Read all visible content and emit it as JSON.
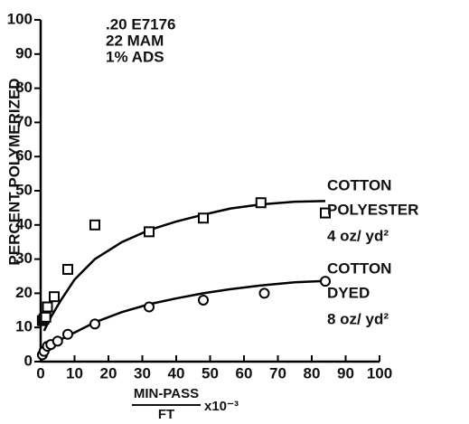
{
  "chart_data": {
    "type": "scatter",
    "annotation": [
      ".20  E7176",
      "22  MAM",
      "1%  ADS"
    ],
    "y_label": "PERCENT  POLYMERIZED",
    "x_label": {
      "numerator": "MIN-PASS",
      "denominator": "FT",
      "multiplier": "x10⁻³"
    },
    "xlim": [
      0,
      100
    ],
    "ylim": [
      0,
      100
    ],
    "xticks": [
      0,
      10,
      20,
      30,
      40,
      50,
      60,
      70,
      80,
      90,
      100
    ],
    "yticks": [
      0,
      10,
      20,
      30,
      40,
      50,
      60,
      70,
      80,
      90,
      100
    ],
    "grid": false,
    "color": "#000000",
    "series": [
      {
        "marker": "square",
        "label_lines": [
          "COTTON",
          "POLYESTER",
          "4 oz/ yd²"
        ],
        "x": [
          0.5,
          1,
          1.5,
          2,
          4,
          8,
          16,
          32,
          48,
          65,
          84
        ],
        "values": [
          12,
          12.5,
          13,
          16,
          19,
          27,
          40,
          38,
          42,
          46.5,
          43.5
        ],
        "fit_x": [
          1,
          3,
          6,
          10,
          16,
          24,
          32,
          40,
          48,
          56,
          65,
          75,
          84
        ],
        "fit_values": [
          9,
          13,
          18,
          24,
          30,
          35,
          38.5,
          41,
          43,
          44.8,
          46,
          46.8,
          47
        ]
      },
      {
        "marker": "circle",
        "label_lines": [
          "COTTON",
          "DYED",
          "8 oz/ yd²"
        ],
        "x": [
          0.5,
          1,
          2,
          3,
          5,
          8,
          16,
          32,
          48,
          66,
          84
        ],
        "values": [
          2,
          3,
          4.5,
          5,
          6,
          8,
          11,
          16,
          18,
          20,
          23.5
        ],
        "fit_x": [
          0,
          1,
          3,
          6,
          10,
          16,
          24,
          32,
          40,
          48,
          56,
          65,
          75,
          84
        ],
        "fit_values": [
          0,
          2.5,
          4.5,
          6.5,
          8.5,
          11.5,
          14.5,
          16.8,
          18.5,
          20,
          21.2,
          22.3,
          23.2,
          23.6
        ]
      }
    ]
  }
}
